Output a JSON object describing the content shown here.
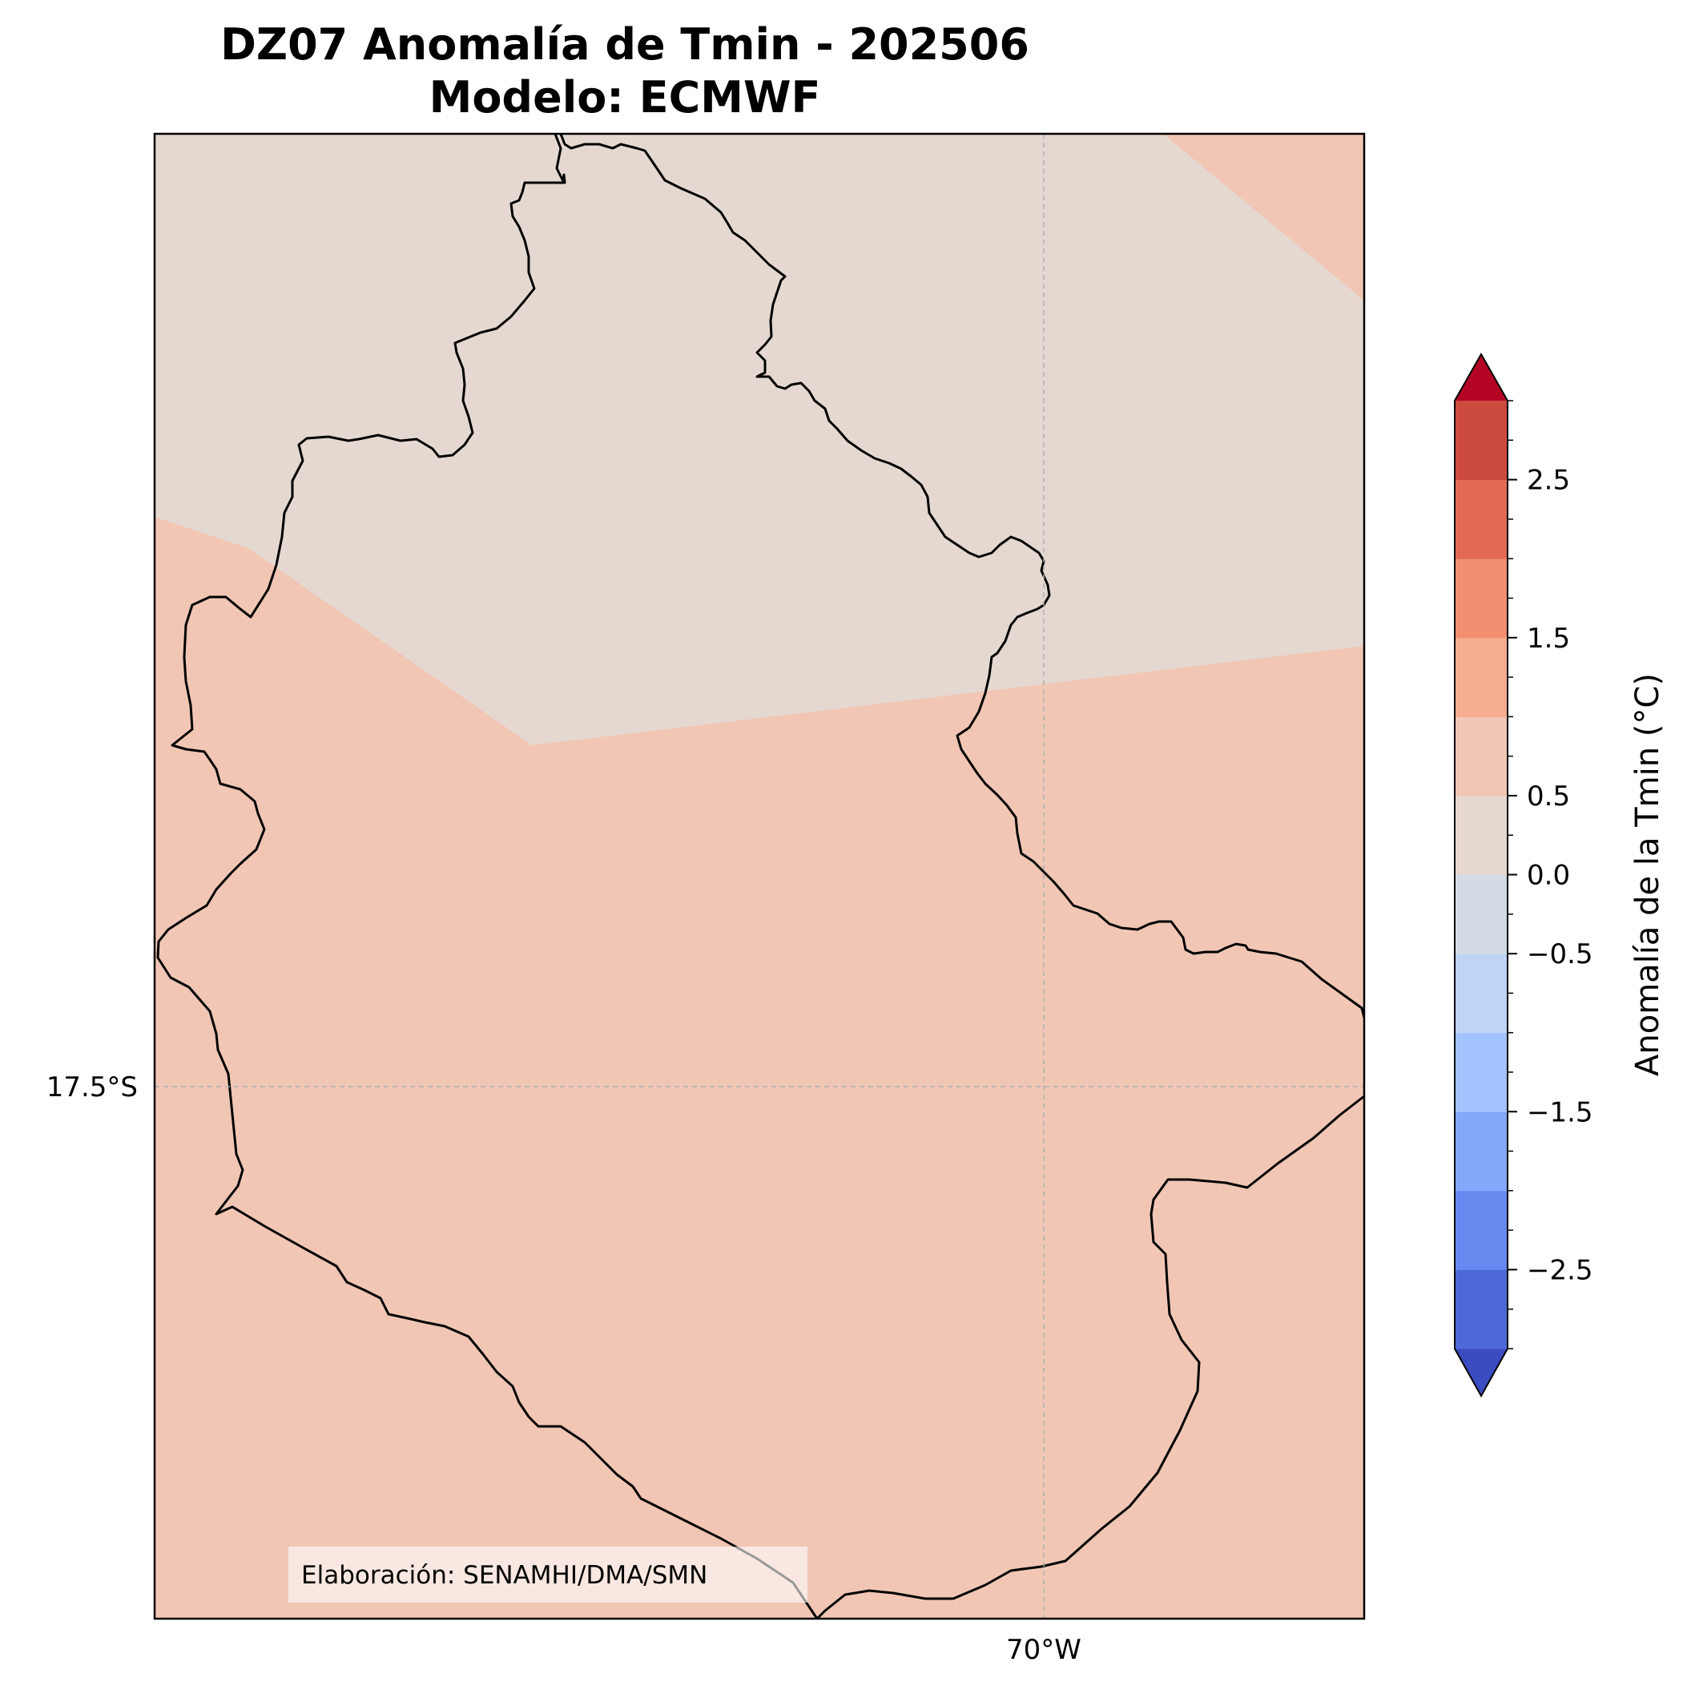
{
  "title": {
    "line1": "DZ07 Anomalía de Tmin - 202506",
    "line2": "Modelo: ECMWF"
  },
  "map": {
    "region": "DZ07",
    "lat_gridline_label": "17.5°S",
    "lon_gridline_label": "70°W",
    "credit": "Elaboración: SENAMHI/DMA/SMN",
    "fill_bands": [
      {
        "range": [
          0.0,
          0.25
        ],
        "color": "#e5d8d1"
      },
      {
        "range": [
          0.25,
          0.5
        ],
        "color": "#f1c6b4"
      }
    ],
    "border_color": "#000000",
    "gridline_color": "#b0b0b0"
  },
  "colorbar": {
    "label": "Anomalía de la Tmin (°C)",
    "extend": "both",
    "min": -3.0,
    "max": 3.0,
    "step": 0.5,
    "tick_labels": [
      "−2.5",
      "−1.5",
      "−0.5",
      "0.0",
      "0.5",
      "1.5",
      "2.5"
    ],
    "tick_values": [
      -2.5,
      -1.5,
      -0.5,
      0.0,
      0.5,
      1.5,
      2.5
    ],
    "minor_ticks_every": 0.25,
    "colors": [
      "#3b4cc0",
      "#4e68d8",
      "#6788ee",
      "#84a7fc",
      "#a3c2fe",
      "#c0d4f5",
      "#d4dbe6",
      "#e5d8d1",
      "#f1c6b4",
      "#f6ad91",
      "#f18f70",
      "#e26952",
      "#cd4a3f",
      "#b40426"
    ]
  }
}
